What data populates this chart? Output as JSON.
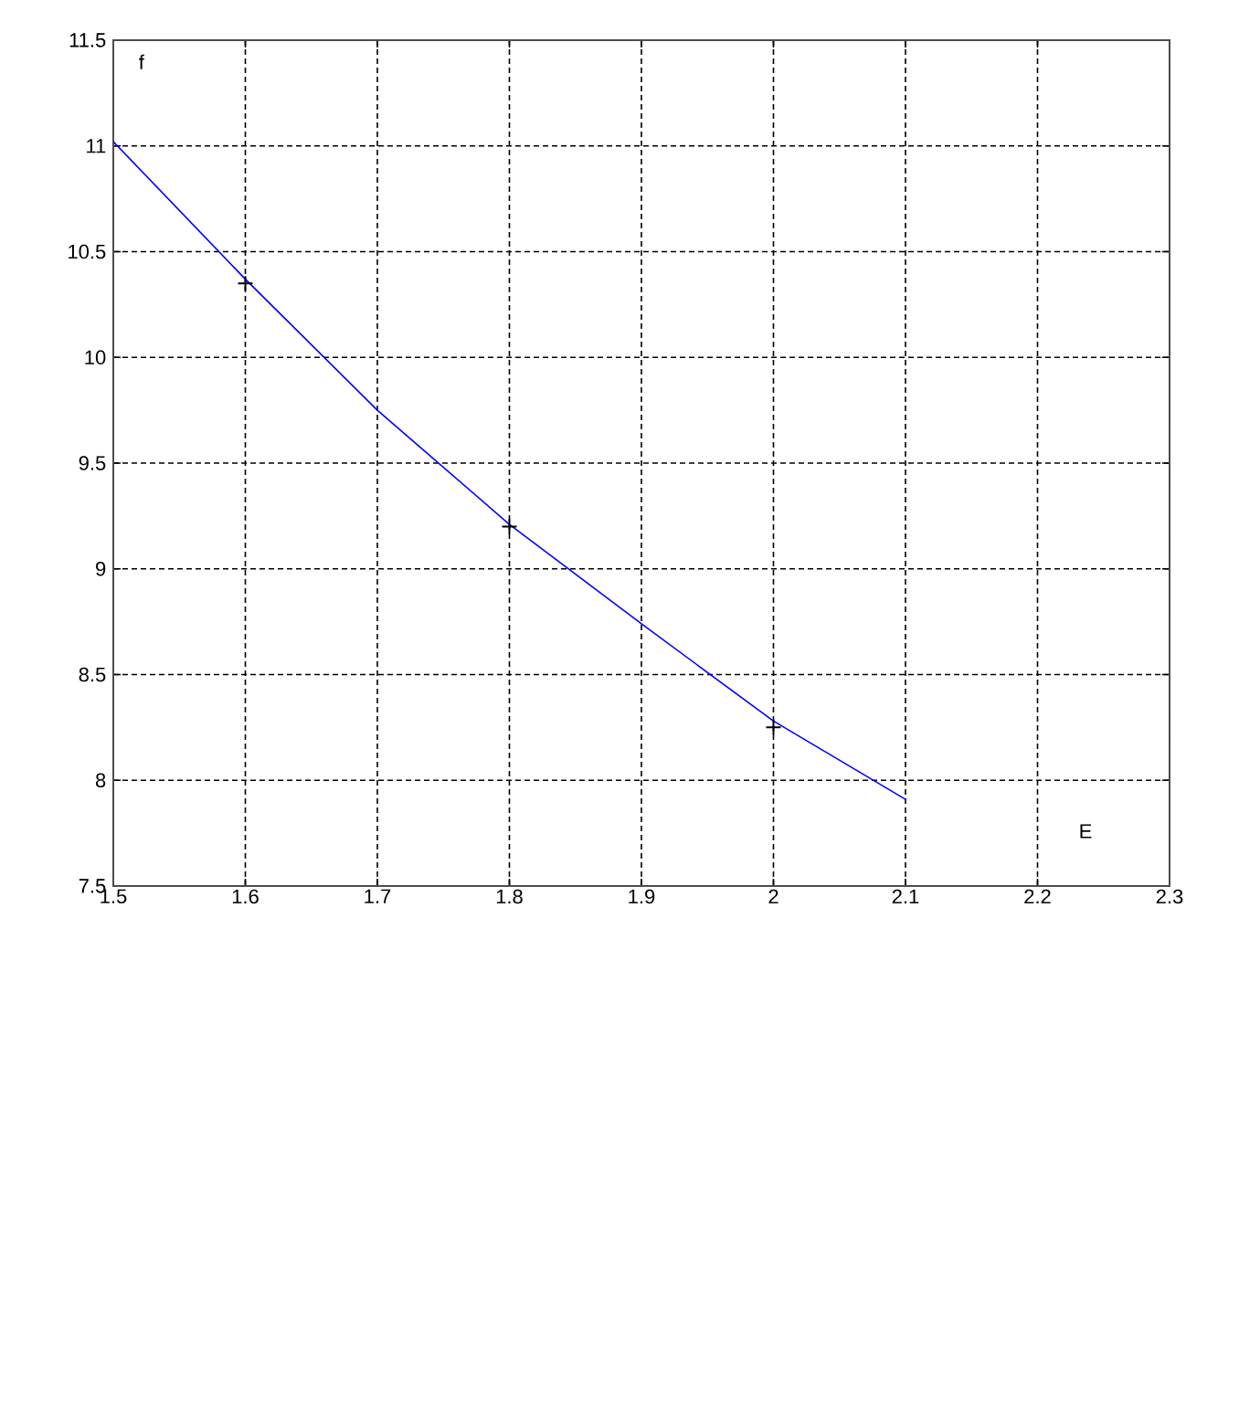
{
  "chart_data": {
    "type": "line",
    "xlabel": "E",
    "ylabel": "f",
    "series": [
      {
        "color": "#0000ff",
        "marker": "none",
        "x": [
          1.5,
          1.6,
          1.7,
          1.8,
          1.9,
          2.0,
          2.1
        ],
        "values": [
          11.02,
          10.37,
          9.75,
          9.21,
          8.74,
          8.28,
          7.91
        ]
      },
      {
        "type": "scatter",
        "color": "#000000",
        "marker": "cross",
        "x": [
          1.6,
          1.8,
          2.0
        ],
        "values": [
          10.35,
          9.2,
          8.25
        ]
      }
    ],
    "xlim": [
      1.5,
      2.3
    ],
    "xticks": [
      1.5,
      1.6,
      1.7,
      1.8,
      1.9,
      2,
      2.1,
      2.2,
      2.3
    ],
    "ylim": [
      7.5,
      11.5
    ],
    "yticks": [
      7.5,
      8,
      8.5,
      9,
      9.5,
      10,
      10.5,
      11,
      11.5
    ],
    "grid": true
  }
}
